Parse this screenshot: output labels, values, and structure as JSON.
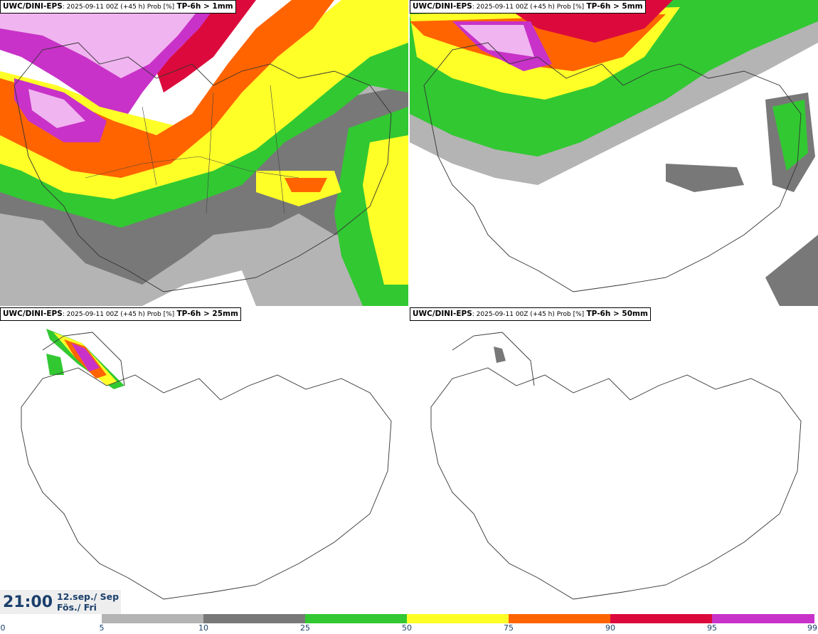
{
  "panels": [
    {
      "model": "UWC/DINI-EPS",
      "meta": ": 2025-09-11 00Z (+45 h) Prob [%]",
      "threshold": "TP-6h > 1mm"
    },
    {
      "model": "UWC/DINI-EPS",
      "meta": ": 2025-09-11 00Z (+45 h) Prob [%]",
      "threshold": "TP-6h > 5mm"
    },
    {
      "model": "UWC/DINI-EPS",
      "meta": ": 2025-09-11 00Z (+45 h) Prob [%]",
      "threshold": "TP-6h > 25mm"
    },
    {
      "model": "UWC/DINI-EPS",
      "meta": ": 2025-09-11 00Z (+45 h) Prob [%]",
      "threshold": "TP-6h > 50mm"
    }
  ],
  "valid_time": {
    "hour": "21:00",
    "date": "12.sep./ Sep",
    "weekday": "Fös./ Fri"
  },
  "colorbar": {
    "ticks": [
      "0",
      "5",
      "10",
      "25",
      "50",
      "75",
      "90",
      "95",
      "99"
    ],
    "colors": [
      "#ffffff",
      "#b4b4b4",
      "#787878",
      "#32c832",
      "#ffff28",
      "#ff6400",
      "#dc0a3c",
      "#c832c8",
      "#f0b4f0"
    ]
  }
}
